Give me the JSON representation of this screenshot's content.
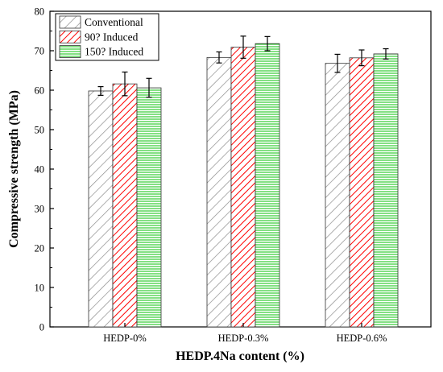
{
  "chart_data": {
    "type": "bar",
    "xlabel": "HEDP.4Na content (%)",
    "ylabel": "Compressive strength (MPa)",
    "ylim": [
      0,
      80
    ],
    "yticks": [
      0,
      10,
      20,
      30,
      40,
      50,
      60,
      70,
      80
    ],
    "categories": [
      "HEDP-0%",
      "HEDP-0.3%",
      "HEDP-0.6%"
    ],
    "grid": false,
    "legend_position": "top-left",
    "series": [
      {
        "name": "Conventional",
        "values": [
          59.8,
          68.3,
          66.8
        ],
        "errors": [
          1.1,
          1.4,
          2.3
        ],
        "color": "#8c8c8c",
        "pattern": "diagonal-hatch"
      },
      {
        "name": "90? Induced",
        "values": [
          61.6,
          70.9,
          68.2
        ],
        "errors": [
          3.0,
          2.8,
          2.0
        ],
        "color": "#ff0000",
        "pattern": "diagonal-hatch"
      },
      {
        "name": "150? Induced",
        "values": [
          60.6,
          71.8,
          69.2
        ],
        "errors": [
          2.4,
          1.8,
          1.3
        ],
        "color": "#33cc33",
        "pattern": "horizontal-lines"
      }
    ]
  }
}
